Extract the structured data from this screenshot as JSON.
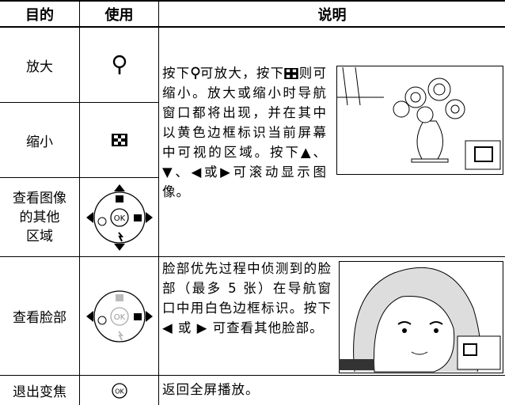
{
  "header": {
    "cells": [
      "目的",
      "使用",
      "说明"
    ]
  },
  "rows": [
    {
      "purpose": "放大"
    },
    {
      "purpose": "缩小"
    },
    {
      "purpose": [
        "查看图像",
        "的其他",
        "区域"
      ]
    },
    {
      "purpose": "查看脸部",
      "description": "脸部优先过程中侦测到的脸部（最多 5 张）在导航窗口中用白色边框标识。按下◀ 或 ▶ 可查看其他脸部。"
    },
    {
      "purpose": "退出变焦",
      "description": "返回全屏播放。"
    }
  ],
  "zoom_description": {
    "parts": [
      "按下",
      "可放大，按下",
      "则可缩小。放大或缩小时导航窗口都将出现，并在其中以黄色边框标识当前屏幕中可视的区域。按下▲、▼、◀或▶可滚动显示图像。"
    ]
  }
}
